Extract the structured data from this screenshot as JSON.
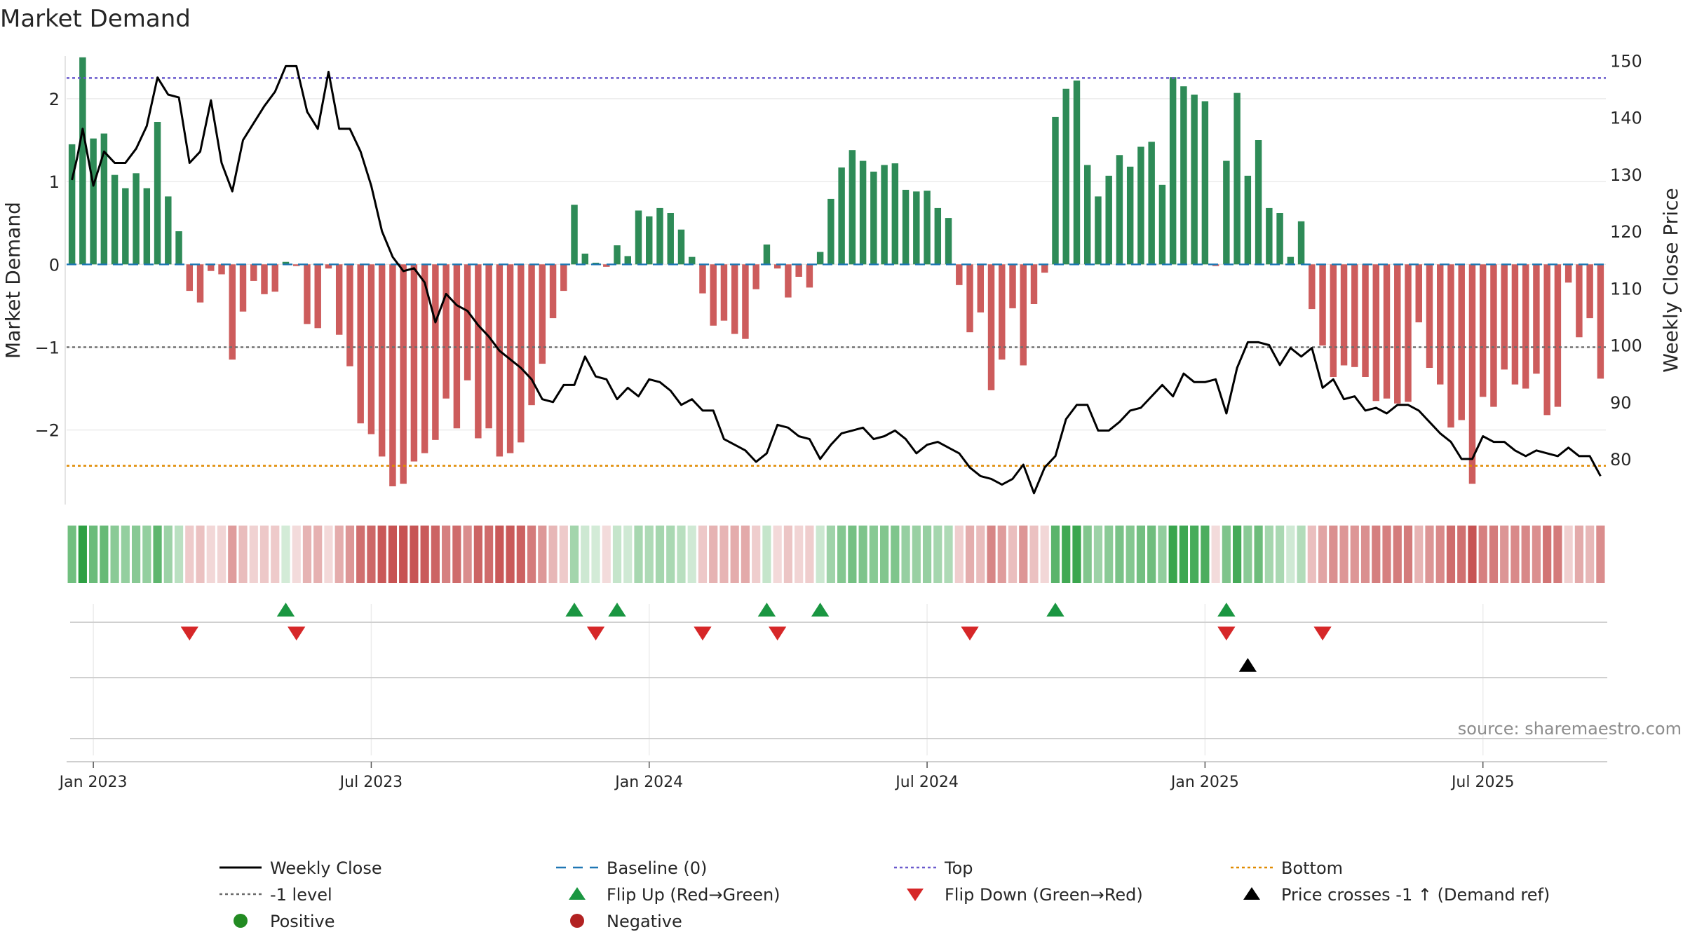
{
  "chart_data": {
    "type": "bar+line",
    "title": "Market Demand",
    "ylabel_left": "Market Demand",
    "ylabel_right": "Weekly Close Price",
    "ylim_left": [
      -2.9,
      2.6
    ],
    "ylim_right": [
      72,
      152
    ],
    "yticks_left": [
      {
        "value": 2,
        "label": "2"
      },
      {
        "value": 1,
        "label": "1"
      },
      {
        "value": 0,
        "label": "0"
      },
      {
        "value": -1,
        "label": "−1"
      },
      {
        "value": -2,
        "label": "−2"
      }
    ],
    "yticks_right": [
      150,
      140,
      130,
      120,
      110,
      100,
      90,
      80
    ],
    "x_start": "2022-12-23",
    "x_step_weeks": 1,
    "xticks": [
      {
        "index": 2,
        "label": "Jan 2023"
      },
      {
        "index": 28,
        "label": "Jul 2023"
      },
      {
        "index": 54,
        "label": "Jan 2024"
      },
      {
        "index": 80,
        "label": "Jul 2024"
      },
      {
        "index": 106,
        "label": "Jan 2025"
      },
      {
        "index": 132,
        "label": "Jul 2025"
      }
    ],
    "reference_lines": [
      {
        "name": "Top",
        "axis": "left",
        "value": 2.25,
        "color": "#6a5acd",
        "style": "dotted"
      },
      {
        "name": "-1 level",
        "axis": "left",
        "value": -1,
        "color": "#6b6b6b",
        "style": "dotted"
      },
      {
        "name": "Bottom",
        "axis": "right",
        "value": 78.8,
        "color": "#e08a00",
        "style": "dotted"
      },
      {
        "name": "Baseline (0)",
        "axis": "left",
        "value": 0,
        "color": "#1f77b4",
        "style": "dashed"
      }
    ],
    "demand": [
      1.45,
      2.5,
      1.52,
      1.58,
      1.08,
      0.92,
      1.1,
      0.92,
      1.72,
      0.82,
      0.4,
      -0.32,
      -0.46,
      -0.08,
      -0.12,
      -1.15,
      -0.57,
      -0.2,
      -0.36,
      -0.33,
      0.03,
      -0.02,
      -0.72,
      -0.77,
      -0.05,
      -0.85,
      -1.23,
      -1.92,
      -2.05,
      -2.32,
      -2.68,
      -2.65,
      -2.38,
      -2.28,
      -2.12,
      -1.62,
      -1.98,
      -1.4,
      -2.1,
      -1.98,
      -2.32,
      -2.28,
      -2.15,
      -1.7,
      -1.2,
      -0.65,
      -0.32,
      0.72,
      0.13,
      0.02,
      -0.03,
      0.23,
      0.1,
      0.65,
      0.58,
      0.68,
      0.62,
      0.42,
      0.09,
      -0.35,
      -0.74,
      -0.68,
      -0.84,
      -0.9,
      -0.3,
      0.24,
      -0.05,
      -0.4,
      -0.15,
      -0.28,
      0.15,
      0.79,
      1.17,
      1.38,
      1.25,
      1.12,
      1.2,
      1.22,
      0.9,
      0.88,
      0.89,
      0.68,
      0.56,
      -0.25,
      -0.82,
      -0.58,
      -1.52,
      -1.15,
      -0.53,
      -1.22,
      -0.48,
      -0.1,
      1.78,
      2.12,
      2.22,
      1.2,
      0.82,
      1.07,
      1.32,
      1.18,
      1.42,
      1.48,
      0.96,
      2.26,
      2.15,
      2.05,
      1.97,
      -0.02,
      1.25,
      2.07,
      1.07,
      1.5,
      0.68,
      0.62,
      0.09,
      0.52,
      -0.54,
      -0.98,
      -1.36,
      -1.22,
      -1.24,
      -1.36,
      -1.65,
      -1.62,
      -1.68,
      -1.66,
      -0.7,
      -1.25,
      -1.45,
      -1.97,
      -1.88,
      -2.65,
      -1.6,
      -1.72,
      -1.27,
      -1.45,
      -1.5,
      -1.32,
      -1.82,
      -1.72,
      -0.22,
      -0.88,
      -0.65,
      -1.38
    ],
    "close": [
      [
        0,
        129
      ],
      [
        0.5,
        133
      ],
      [
        1,
        138
      ],
      [
        2,
        128
      ],
      [
        3,
        134
      ],
      [
        4,
        132
      ],
      [
        5,
        132
      ],
      [
        6,
        134.5
      ],
      [
        7,
        138.5
      ],
      [
        8,
        147
      ],
      [
        9,
        144
      ],
      [
        10,
        143.5
      ],
      [
        11,
        132
      ],
      [
        12,
        134
      ],
      [
        13,
        143
      ],
      [
        14,
        132
      ],
      [
        15,
        127
      ],
      [
        16,
        136
      ],
      [
        17,
        139
      ],
      [
        18,
        142
      ],
      [
        19,
        144.5
      ],
      [
        20,
        149
      ],
      [
        21,
        149
      ],
      [
        22,
        141
      ],
      [
        23,
        138
      ],
      [
        24,
        148
      ],
      [
        25,
        138
      ],
      [
        26,
        138
      ],
      [
        27,
        134
      ],
      [
        28,
        128
      ],
      [
        29,
        120
      ],
      [
        30,
        115.5
      ],
      [
        31,
        113
      ],
      [
        32,
        113.5
      ],
      [
        33,
        111
      ],
      [
        34,
        104
      ],
      [
        35,
        109
      ],
      [
        36,
        107
      ],
      [
        37,
        106
      ],
      [
        38,
        103.5
      ],
      [
        39,
        101.5
      ],
      [
        40,
        99
      ],
      [
        41,
        97.5
      ],
      [
        42,
        96
      ],
      [
        43,
        94
      ],
      [
        44,
        90.5
      ],
      [
        45,
        90
      ],
      [
        46,
        93
      ],
      [
        47,
        93
      ],
      [
        48,
        98
      ],
      [
        49,
        94.5
      ],
      [
        50,
        94
      ],
      [
        51,
        90.5
      ],
      [
        52,
        92.5
      ],
      [
        53,
        91
      ],
      [
        54,
        94
      ],
      [
        55,
        93.5
      ],
      [
        56,
        92
      ],
      [
        57,
        89.5
      ],
      [
        58,
        90.5
      ],
      [
        59,
        88.5
      ],
      [
        60,
        88.5
      ],
      [
        61,
        83.5
      ],
      [
        62,
        82.5
      ],
      [
        63,
        81.5
      ],
      [
        64,
        79.5
      ],
      [
        65,
        81
      ],
      [
        66,
        86
      ],
      [
        67,
        85.5
      ],
      [
        68,
        84
      ],
      [
        69,
        83.5
      ],
      [
        70,
        80
      ],
      [
        71,
        82.5
      ],
      [
        72,
        84.5
      ],
      [
        73,
        85
      ],
      [
        74,
        85.5
      ],
      [
        75,
        83.5
      ],
      [
        76,
        84
      ],
      [
        77,
        85
      ],
      [
        78,
        83.5
      ],
      [
        79,
        81
      ],
      [
        80,
        82.5
      ],
      [
        81,
        83
      ],
      [
        82,
        82
      ],
      [
        83,
        81
      ],
      [
        84,
        78.5
      ],
      [
        85,
        77
      ],
      [
        86,
        76.5
      ],
      [
        87,
        75.5
      ],
      [
        88,
        76.5
      ],
      [
        89,
        79
      ],
      [
        90,
        74
      ],
      [
        91,
        78.5
      ],
      [
        92,
        80.5
      ],
      [
        93,
        87
      ],
      [
        94,
        89.5
      ],
      [
        95,
        89.5
      ],
      [
        96,
        85
      ],
      [
        97,
        85
      ],
      [
        98,
        86.5
      ],
      [
        99,
        88.5
      ],
      [
        100,
        89
      ],
      [
        101,
        91
      ],
      [
        102,
        93
      ],
      [
        103,
        91
      ],
      [
        104,
        95
      ],
      [
        105,
        93.5
      ],
      [
        106,
        93.5
      ],
      [
        107,
        94
      ],
      [
        108,
        88
      ],
      [
        109,
        96
      ],
      [
        110,
        100.5
      ],
      [
        111,
        100.5
      ],
      [
        112,
        100
      ],
      [
        113,
        96.5
      ],
      [
        114,
        99.5
      ],
      [
        115,
        98
      ],
      [
        116,
        99.5
      ],
      [
        117,
        92.5
      ],
      [
        118,
        94
      ],
      [
        119,
        90.5
      ],
      [
        120,
        91
      ],
      [
        121,
        88.5
      ],
      [
        122,
        89
      ],
      [
        123,
        88
      ],
      [
        124,
        89.5
      ],
      [
        125,
        89.5
      ],
      [
        126,
        88.5
      ],
      [
        127,
        86.5
      ],
      [
        128,
        84.5
      ],
      [
        129,
        83
      ],
      [
        130,
        80
      ],
      [
        131,
        80
      ],
      [
        132,
        84
      ],
      [
        133,
        83
      ],
      [
        134,
        83
      ],
      [
        135,
        81.5
      ],
      [
        136,
        80.5
      ],
      [
        137,
        81.5
      ],
      [
        138,
        81
      ],
      [
        139,
        80.5
      ],
      [
        140,
        82
      ],
      [
        141,
        80.5
      ],
      [
        142,
        80.5
      ],
      [
        143,
        77
      ]
    ],
    "flip_up_indices": [
      20,
      47,
      51,
      65,
      70,
      92,
      108
    ],
    "flip_down_indices": [
      11,
      21,
      49,
      59,
      66,
      84,
      108,
      117
    ],
    "price_cross_indices": [
      110
    ],
    "colors": {
      "positive_bar": "#2e8b57",
      "negative_bar": "#cd5c5c",
      "close_line": "#000000",
      "flip_up": "#1a9641",
      "flip_down": "#d62728",
      "cross": "#000000",
      "positive_dot": "#228b22",
      "negative_dot": "#b22222"
    },
    "source": "source: sharemaestro.com",
    "legend": [
      {
        "key": "close",
        "label": "Weekly Close"
      },
      {
        "key": "baseline",
        "label": "Baseline (0)"
      },
      {
        "key": "top",
        "label": "Top"
      },
      {
        "key": "bottom",
        "label": "Bottom"
      },
      {
        "key": "minus1",
        "label": "-1 level"
      },
      {
        "key": "flipup",
        "label": "Flip Up (Red→Green)"
      },
      {
        "key": "flipdown",
        "label": "Flip Down (Green→Red)"
      },
      {
        "key": "cross",
        "label": "Price crosses -1 ↑ (Demand ref)"
      },
      {
        "key": "positive",
        "label": "Positive"
      },
      {
        "key": "negative",
        "label": "Negative"
      }
    ]
  }
}
